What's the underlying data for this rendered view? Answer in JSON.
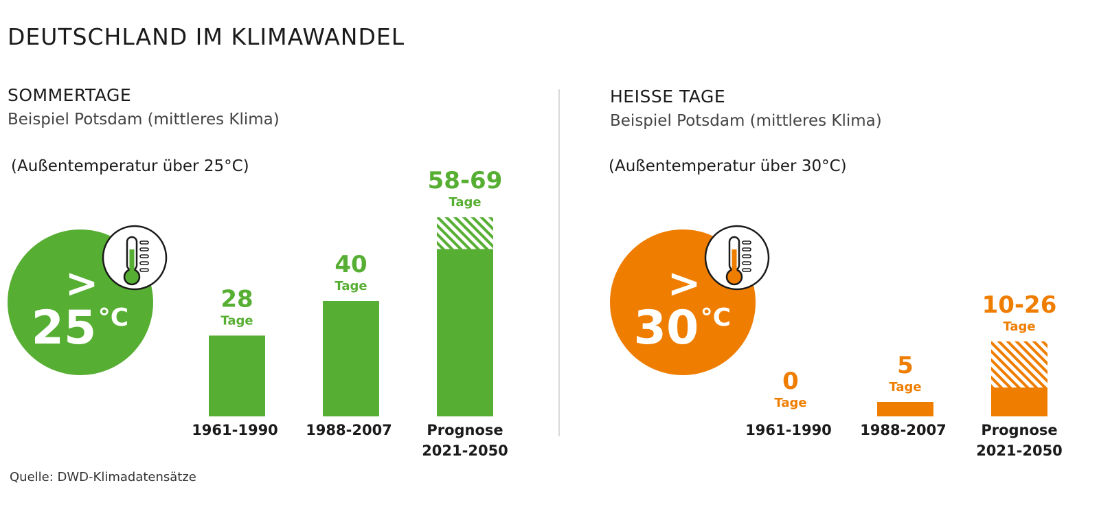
{
  "title": "DEUTSCHLAND IM KLIMAWANDEL",
  "source": "Quelle: DWD-Klimadatensätze",
  "colors": {
    "green": "#56ae32",
    "orange": "#ef7d00",
    "text": "#1a1a1a"
  },
  "chart_data": [
    {
      "type": "bar",
      "title": "SOMMERTAGE",
      "subtitle": "Beispiel Potsdam (mittleres Klima)",
      "note": "(Außentemperatur über 25°C)",
      "badge": {
        "symbol": ">",
        "value": "25",
        "unit": "°C",
        "icon": "thermometer-icon"
      },
      "color": "#56ae32",
      "categories": [
        [
          "1961-1990"
        ],
        [
          "1988-2007"
        ],
        [
          "Prognose",
          "2021-2050"
        ]
      ],
      "values": [
        28,
        40,
        [
          58,
          69
        ]
      ],
      "value_labels": [
        "28",
        "40",
        "58-69"
      ],
      "unit_label": "Tage",
      "ylim": [
        0,
        69
      ]
    },
    {
      "type": "bar",
      "title": "HEISSE TAGE",
      "subtitle": "Beispiel Potsdam (mittleres Klima)",
      "note": "(Außentemperatur über 30°C)",
      "badge": {
        "symbol": ">",
        "value": "30",
        "unit": "°C",
        "icon": "thermometer-icon"
      },
      "color": "#ef7d00",
      "categories": [
        [
          "1961-1990"
        ],
        [
          "1988-2007"
        ],
        [
          "Prognose",
          "2021-2050"
        ]
      ],
      "values": [
        0,
        5,
        [
          10,
          26
        ]
      ],
      "value_labels": [
        "0",
        "5",
        "10-26"
      ],
      "unit_label": "Tage",
      "ylim": [
        0,
        26
      ]
    }
  ]
}
